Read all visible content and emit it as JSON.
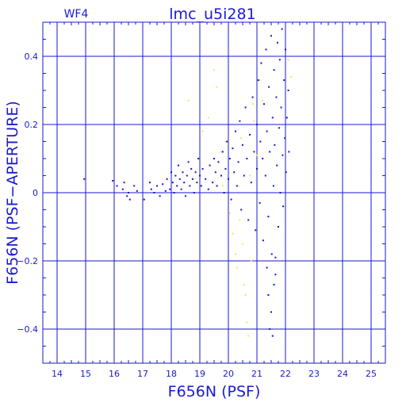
{
  "chart_data": {
    "type": "scatter",
    "title": "lmc_u5i281",
    "corner_label": "WF4",
    "xlabel": "F656N (PSF)",
    "ylabel": "F656N (PSF−APERTURE)",
    "xlim": [
      13.5,
      25.5
    ],
    "ylim": [
      -0.5,
      0.5
    ],
    "x_ticks": [
      14,
      15,
      16,
      17,
      18,
      19,
      20,
      21,
      22,
      23,
      24,
      25
    ],
    "y_ticks": [
      0.4,
      0.2,
      0,
      -0.2,
      -0.4
    ],
    "y_tick_labels": [
      "0.4",
      "0.2",
      "0",
      "−0.2",
      "−0.4"
    ],
    "grid": true,
    "colors": {
      "axis": "#1a1ad0",
      "blue": "#1515c8",
      "yellow": "#f2e84a"
    },
    "series": [
      {
        "color": "#1515c8",
        "points": [
          [
            14.95,
            0.04
          ],
          [
            15.95,
            0.035
          ],
          [
            16.1,
            0.02
          ],
          [
            16.3,
            0.01
          ],
          [
            16.35,
            0.03
          ],
          [
            16.45,
            -0.01
          ],
          [
            16.5,
            0.0
          ],
          [
            16.55,
            -0.02
          ],
          [
            16.7,
            0.02
          ],
          [
            16.8,
            0.005
          ],
          [
            17.05,
            -0.02
          ],
          [
            17.25,
            0.03
          ],
          [
            17.3,
            0.01
          ],
          [
            17.4,
            0.0
          ],
          [
            17.5,
            0.02
          ],
          [
            17.6,
            -0.01
          ],
          [
            17.7,
            0.025
          ],
          [
            17.8,
            0.005
          ],
          [
            17.85,
            0.04
          ],
          [
            17.95,
            0.01
          ],
          [
            18.0,
            0.06
          ],
          [
            18.05,
            0.03
          ],
          [
            18.1,
            0.0
          ],
          [
            18.15,
            0.05
          ],
          [
            18.2,
            0.02
          ],
          [
            18.25,
            0.08
          ],
          [
            18.3,
            0.04
          ],
          [
            18.35,
            0.01
          ],
          [
            18.4,
            0.06
          ],
          [
            18.45,
            0.03
          ],
          [
            18.5,
            -0.01
          ],
          [
            18.55,
            0.05
          ],
          [
            18.6,
            0.09
          ],
          [
            18.65,
            0.02
          ],
          [
            18.7,
            0.07
          ],
          [
            18.75,
            0.04
          ],
          [
            18.8,
            0.0
          ],
          [
            18.85,
            0.06
          ],
          [
            18.9,
            0.03
          ],
          [
            18.95,
            0.1
          ],
          [
            19.0,
            0.05
          ],
          [
            19.05,
            0.02
          ],
          [
            19.1,
            0.07
          ],
          [
            19.2,
            0.04
          ],
          [
            19.3,
            0.01
          ],
          [
            19.35,
            0.08
          ],
          [
            19.45,
            0.03
          ],
          [
            19.5,
            0.1
          ],
          [
            19.55,
            0.06
          ],
          [
            19.6,
            0.02
          ],
          [
            19.65,
            0.09
          ],
          [
            19.75,
            0.05
          ],
          [
            19.8,
            0.12
          ],
          [
            19.85,
            0.0
          ],
          [
            19.9,
            0.07
          ],
          [
            19.95,
            0.15
          ],
          [
            20.0,
            0.04
          ],
          [
            20.05,
            0.1
          ],
          [
            20.1,
            -0.02
          ],
          [
            20.15,
            0.13
          ],
          [
            20.2,
            0.06
          ],
          [
            20.25,
            0.18
          ],
          [
            20.3,
            0.02
          ],
          [
            20.35,
            0.09
          ],
          [
            20.4,
            0.21
          ],
          [
            20.45,
            -0.05
          ],
          [
            20.5,
            0.14
          ],
          [
            20.55,
            0.05
          ],
          [
            20.6,
            0.25
          ],
          [
            20.65,
            0.1
          ],
          [
            20.7,
            -0.08
          ],
          [
            20.75,
            0.17
          ],
          [
            20.8,
            0.03
          ],
          [
            20.85,
            0.28
          ],
          [
            20.9,
            0.12
          ],
          [
            20.95,
            -0.11
          ],
          [
            21.0,
            0.2
          ],
          [
            21.0,
            0.07
          ],
          [
            21.05,
            0.33
          ],
          [
            21.1,
            -0.03
          ],
          [
            21.12,
            0.15
          ],
          [
            21.15,
            0.38
          ],
          [
            21.2,
            0.1
          ],
          [
            21.22,
            -0.14
          ],
          [
            21.25,
            0.26
          ],
          [
            21.3,
            0.05
          ],
          [
            21.32,
            0.42
          ],
          [
            21.35,
            0.18
          ],
          [
            21.4,
            -0.07
          ],
          [
            21.42,
            0.31
          ],
          [
            21.45,
            0.12
          ],
          [
            21.5,
            0.46
          ],
          [
            21.52,
            -0.18
          ],
          [
            21.55,
            0.22
          ],
          [
            21.58,
            0.02
          ],
          [
            21.6,
            0.36
          ],
          [
            21.62,
            0.14
          ],
          [
            21.65,
            -0.24
          ],
          [
            21.68,
            0.28
          ],
          [
            21.7,
            0.08
          ],
          [
            21.72,
            0.44
          ],
          [
            21.75,
            -0.1
          ],
          [
            21.78,
            0.19
          ],
          [
            21.8,
            0.39
          ],
          [
            21.82,
            0.0
          ],
          [
            21.85,
            0.25
          ],
          [
            21.88,
            0.48
          ],
          [
            21.9,
            0.11
          ],
          [
            21.92,
            -0.04
          ],
          [
            21.95,
            0.33
          ],
          [
            21.98,
            0.16
          ],
          [
            22.0,
            0.42
          ],
          [
            22.02,
            0.06
          ],
          [
            22.05,
            0.22
          ],
          [
            22.1,
            0.3
          ],
          [
            22.12,
            0.12
          ],
          [
            21.4,
            -0.3
          ],
          [
            21.5,
            -0.35
          ],
          [
            21.6,
            -0.27
          ],
          [
            21.45,
            -0.4
          ],
          [
            21.55,
            -0.42
          ],
          [
            21.35,
            -0.22
          ],
          [
            21.65,
            -0.19
          ]
        ]
      },
      {
        "color": "#f2e84a",
        "points": [
          [
            18.6,
            0.27
          ],
          [
            19.1,
            0.18
          ],
          [
            19.3,
            0.22
          ],
          [
            19.5,
            0.36
          ],
          [
            19.6,
            0.31
          ],
          [
            19.75,
            0.12
          ],
          [
            19.8,
            0.02
          ],
          [
            19.9,
            0.15
          ],
          [
            20.05,
            -0.06
          ],
          [
            20.15,
            -0.12
          ],
          [
            20.25,
            -0.18
          ],
          [
            20.3,
            -0.22
          ],
          [
            20.4,
            -0.08
          ],
          [
            20.45,
            0.16
          ],
          [
            20.5,
            -0.15
          ],
          [
            20.55,
            -0.27
          ],
          [
            20.6,
            -0.3
          ],
          [
            20.65,
            -0.38
          ],
          [
            20.7,
            -0.42
          ],
          [
            20.75,
            0.05
          ],
          [
            20.8,
            -0.2
          ],
          [
            20.85,
            0.26
          ],
          [
            20.9,
            0.21
          ],
          [
            21.0,
            0.11
          ],
          [
            21.1,
            0.33
          ],
          [
            21.2,
            0.27
          ],
          [
            22.1,
            0.39
          ],
          [
            22.2,
            0.34
          ],
          [
            20.35,
            0.02
          ]
        ]
      }
    ]
  }
}
